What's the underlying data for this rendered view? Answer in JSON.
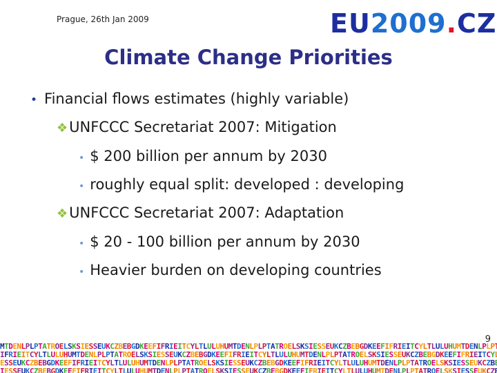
{
  "header": {
    "date": "Prague, 26th Jan 2009",
    "logo_eu": "EU",
    "logo_year": "2009",
    "logo_dot": ".",
    "logo_cz": "CZ"
  },
  "title": "Climate Change Priorities",
  "bullets": [
    {
      "level": 1,
      "text": "Financial flows estimates (highly variable)"
    },
    {
      "level": 2,
      "text": "UNFCCC Secretariat 2007: Mitigation"
    },
    {
      "level": 3,
      "text": "$ 200 billion per annum by 2030"
    },
    {
      "level": 3,
      "text": "roughly equal split: developed : developing"
    },
    {
      "level": 2,
      "text": "UNFCCC Secretariat 2007: Adaptation"
    },
    {
      "level": 3,
      "text": "$ 20 - 100 billion per annum by 2030"
    },
    {
      "level": 3,
      "text": "Heavier burden on developing countries"
    }
  ],
  "footer": {
    "page_number": "9",
    "country_strip": "MTDENLPLPTATROELSKSIESSEUKCZBEBGDKEEFIFRIEITCYLTLULUHUMTDENLPLPTATROELSKSIESSEUKCZBEBGDKEEFIFRIEITCYLTLULUHU"
  },
  "colors": {
    "title": "#2c2e87",
    "level1_bullet": "#1c3d99",
    "level2_bullet": "#8fc23c",
    "level3_bullet": "#6a9bd0"
  }
}
